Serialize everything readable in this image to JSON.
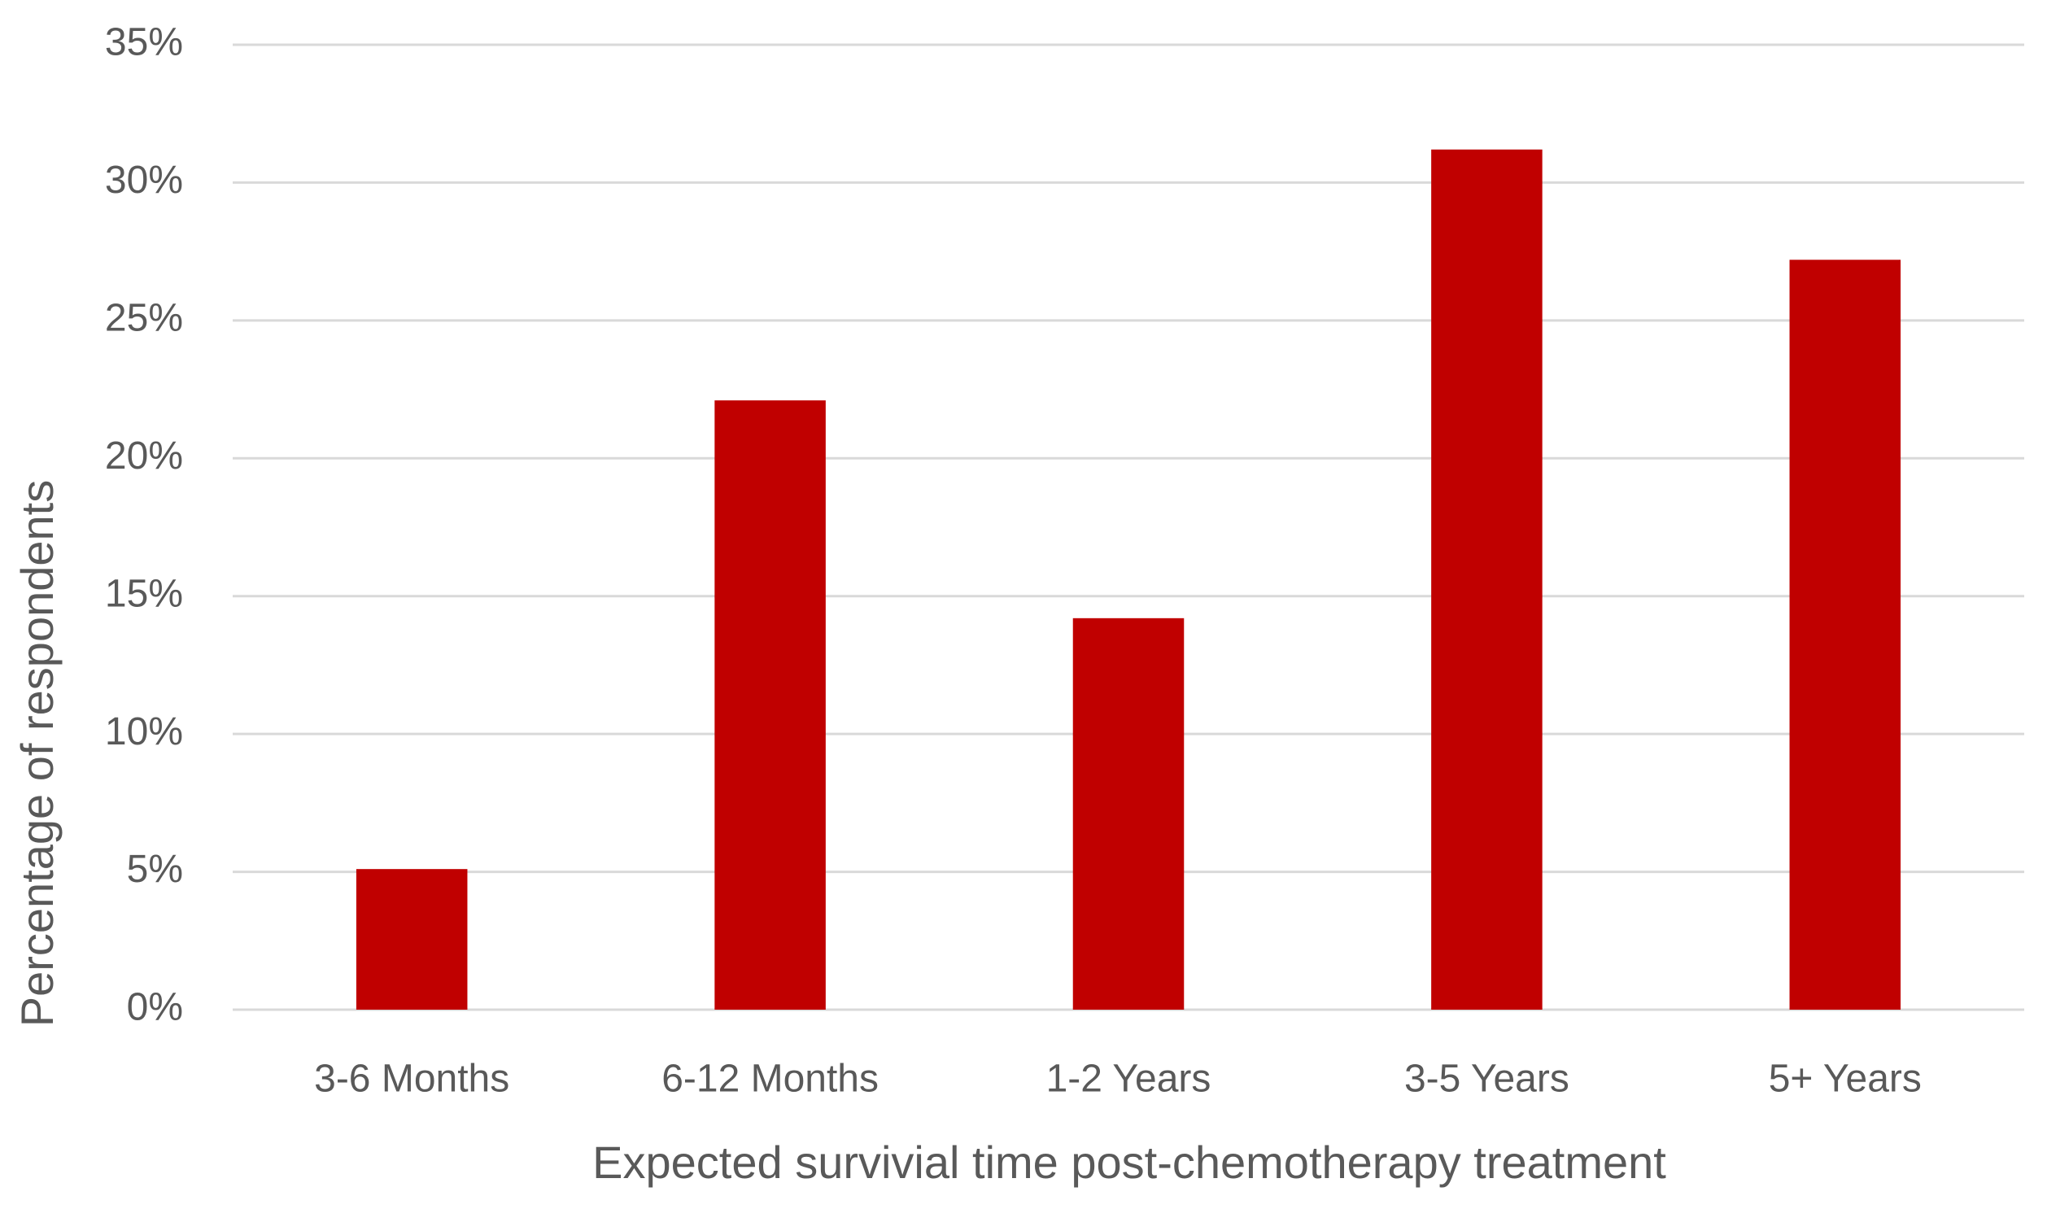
{
  "chart_data": {
    "type": "bar",
    "x_label": "Expected survivial time post-chemotherapy treatment",
    "y_label": "Percentage of respondents",
    "categories": [
      "3-6 Months",
      "6-12 Months",
      "1-2 Years",
      "3-5 Years",
      "5+ Years"
    ],
    "values": [
      5.1,
      22.1,
      14.2,
      31.2,
      27.2
    ],
    "color": "#c00000",
    "ylim": [
      0,
      35
    ],
    "yticks": [
      {
        "value": 0,
        "label": "0%"
      },
      {
        "value": 5,
        "label": "5%"
      },
      {
        "value": 10,
        "label": "10%"
      },
      {
        "value": 15,
        "label": "15%"
      },
      {
        "value": 20,
        "label": "20%"
      },
      {
        "value": 25,
        "label": "25%"
      },
      {
        "value": 30,
        "label": "30%"
      },
      {
        "value": 35,
        "label": "35%"
      }
    ],
    "grid": true
  }
}
